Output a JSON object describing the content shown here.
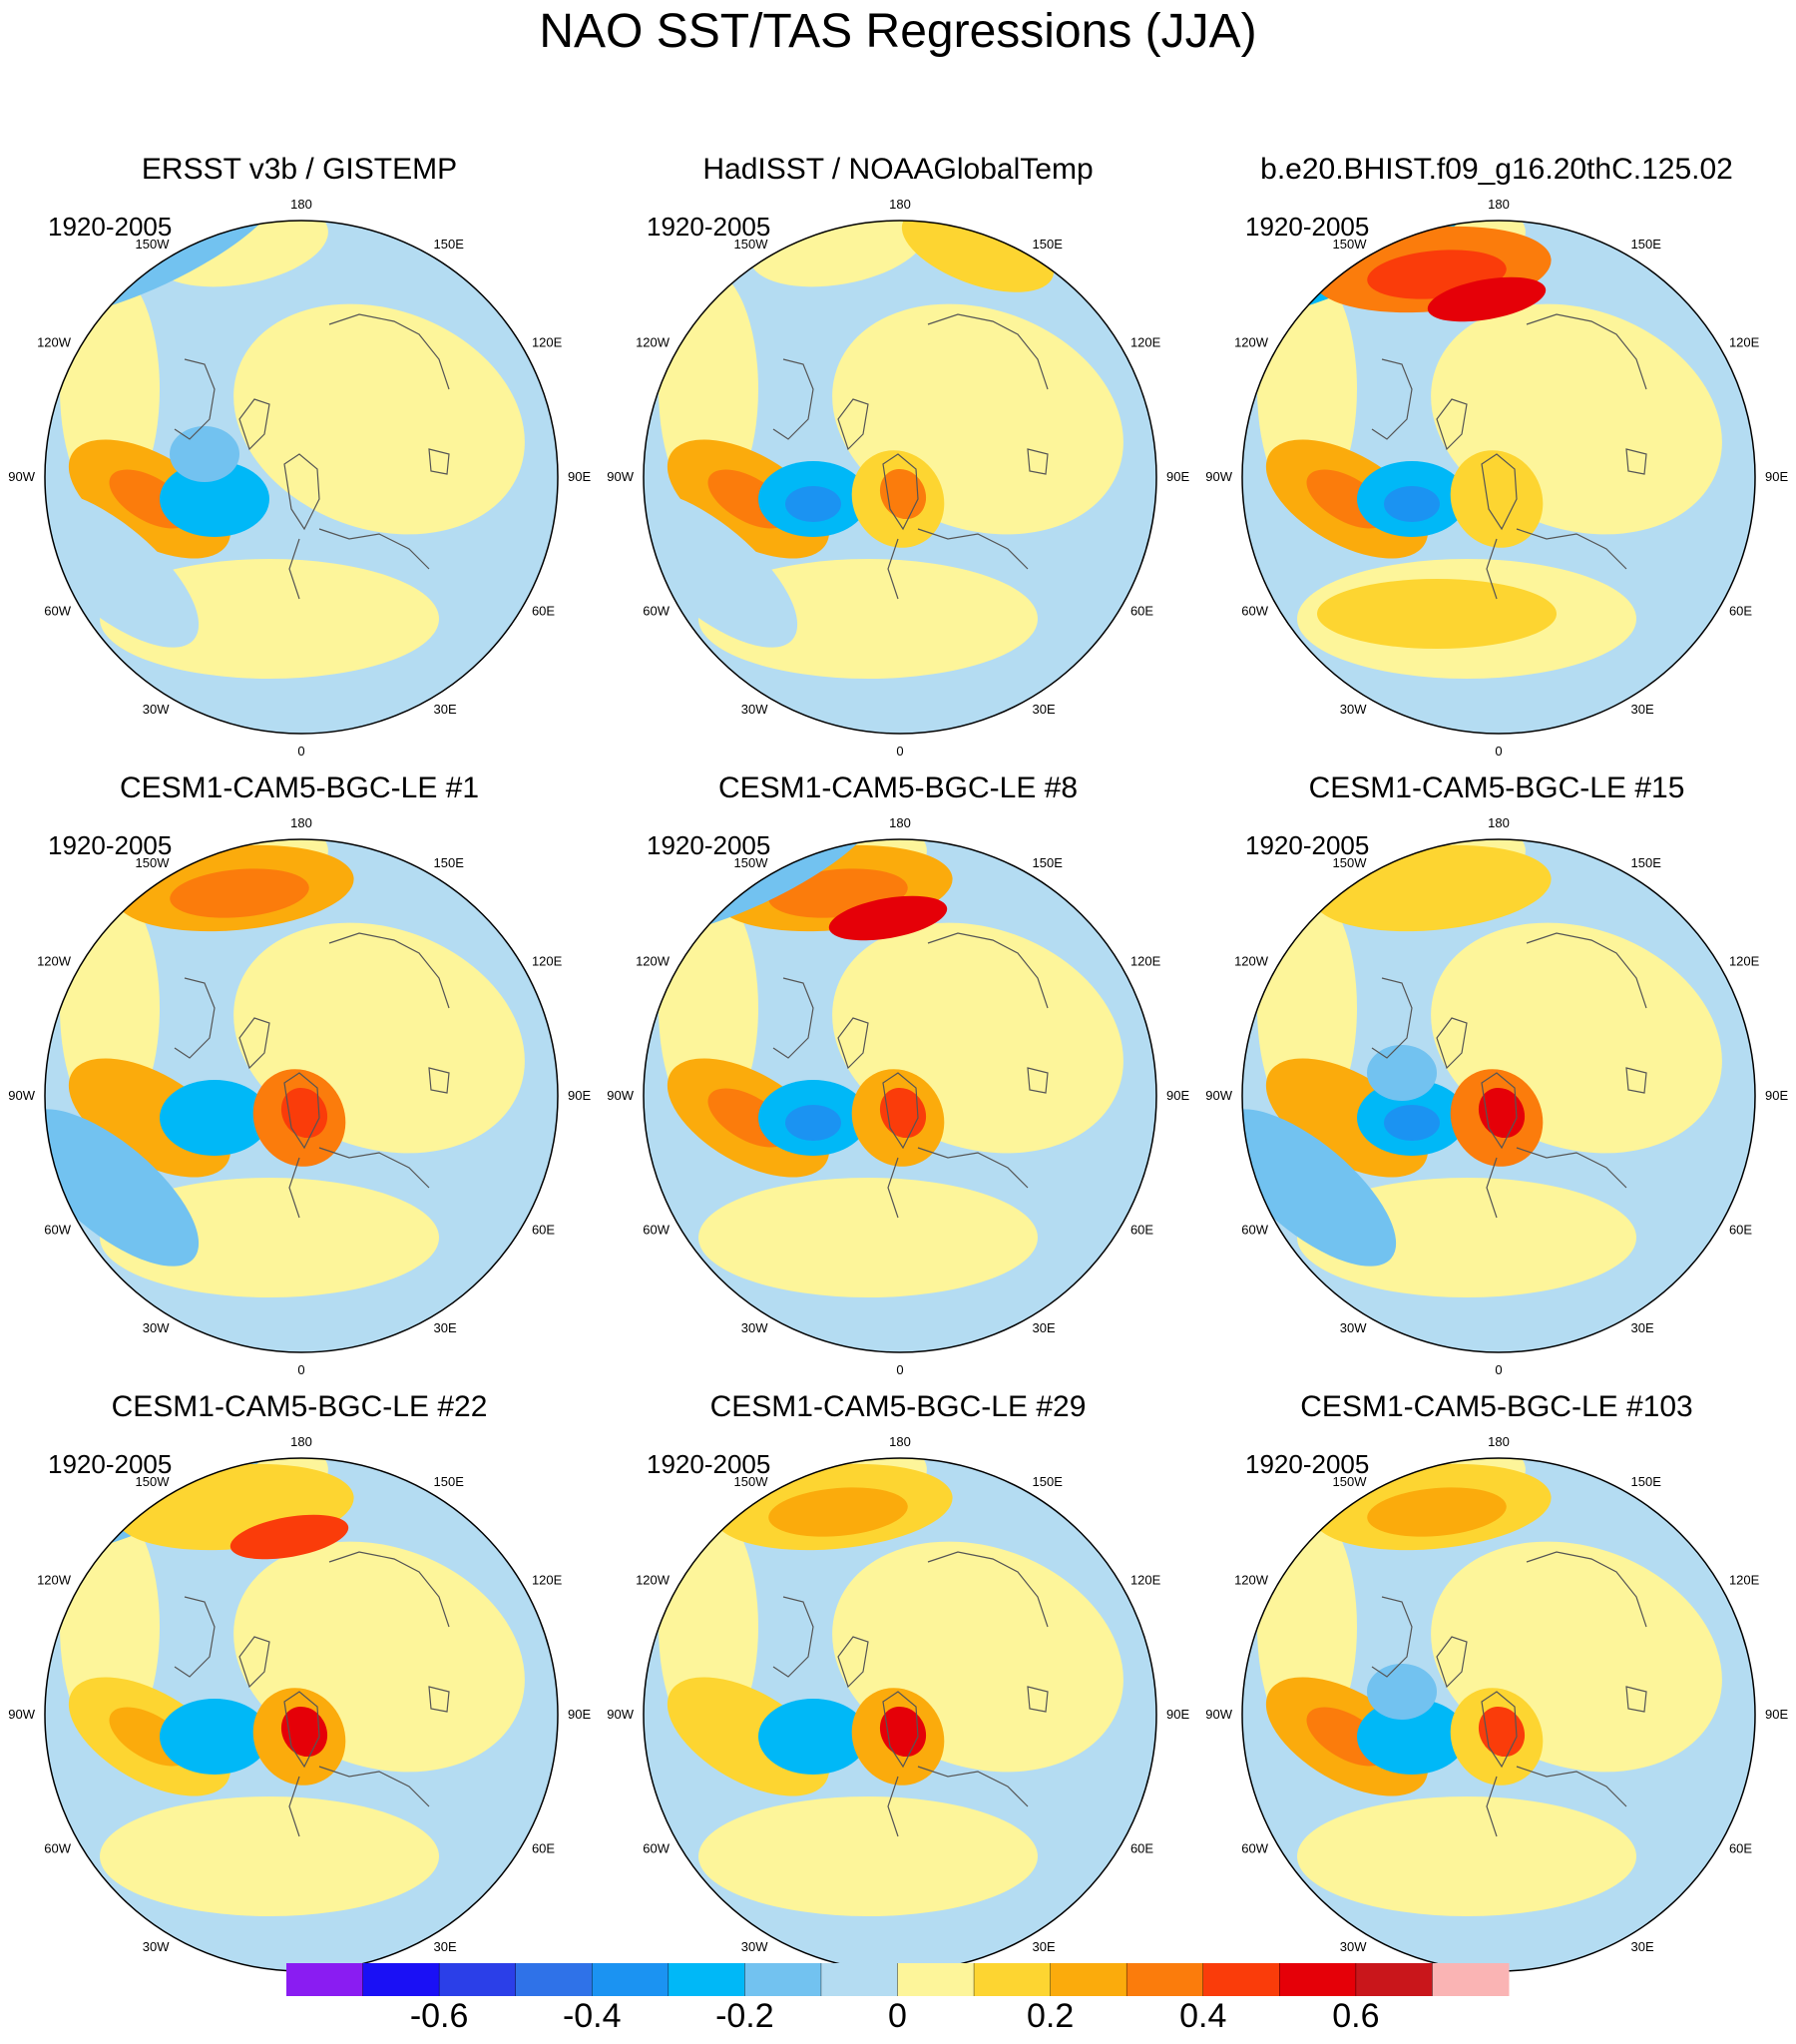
{
  "title": "NAO SST/TAS Regressions (JJA)",
  "period": "1920-2005",
  "longitude_labels": [
    "180",
    "150E",
    "120E",
    "90E",
    "60E",
    "30E",
    "0",
    "30W",
    "60W",
    "90W",
    "120W",
    "150W"
  ],
  "panels": [
    {
      "title": "ERSST v3b / GISTEMP",
      "pattern": "obs1"
    },
    {
      "title": "HadISST / NOAAGlobalTemp",
      "pattern": "obs2"
    },
    {
      "title": "b.e20.BHIST.f09_g16.20thC.125.02",
      "pattern": "model"
    },
    {
      "title": "CESM1-CAM5-BGC-LE #1",
      "pattern": "m1"
    },
    {
      "title": "CESM1-CAM5-BGC-LE #8",
      "pattern": "m8"
    },
    {
      "title": "CESM1-CAM5-BGC-LE #15",
      "pattern": "m15"
    },
    {
      "title": "CESM1-CAM5-BGC-LE #22",
      "pattern": "m22"
    },
    {
      "title": "CESM1-CAM5-BGC-LE #29",
      "pattern": "m29"
    },
    {
      "title": "CESM1-CAM5-BGC-LE #103",
      "pattern": "m103"
    }
  ],
  "colorbar": {
    "colors": [
      "#8a1cf2",
      "#1a10f5",
      "#2b3fe8",
      "#2f72e8",
      "#1b93f2",
      "#00b8f7",
      "#72c2f0",
      "#b4dcf2",
      "#fdf59a",
      "#fdd531",
      "#fbab0c",
      "#fb7c0c",
      "#fa3c0a",
      "#e50008",
      "#c9161b",
      "#fab4b4"
    ],
    "levels": [
      -0.7,
      -0.6,
      -0.5,
      -0.4,
      -0.3,
      -0.2,
      -0.1,
      0,
      0.1,
      0.2,
      0.3,
      0.4,
      0.5,
      0.6,
      0.7
    ],
    "labels": [
      "-0.6",
      "-0.4",
      "-0.2",
      "0",
      "0.2",
      "0.4",
      "0.6"
    ],
    "label_values": [
      -0.6,
      -0.4,
      -0.2,
      0,
      0.2,
      0.4,
      0.6
    ]
  }
}
